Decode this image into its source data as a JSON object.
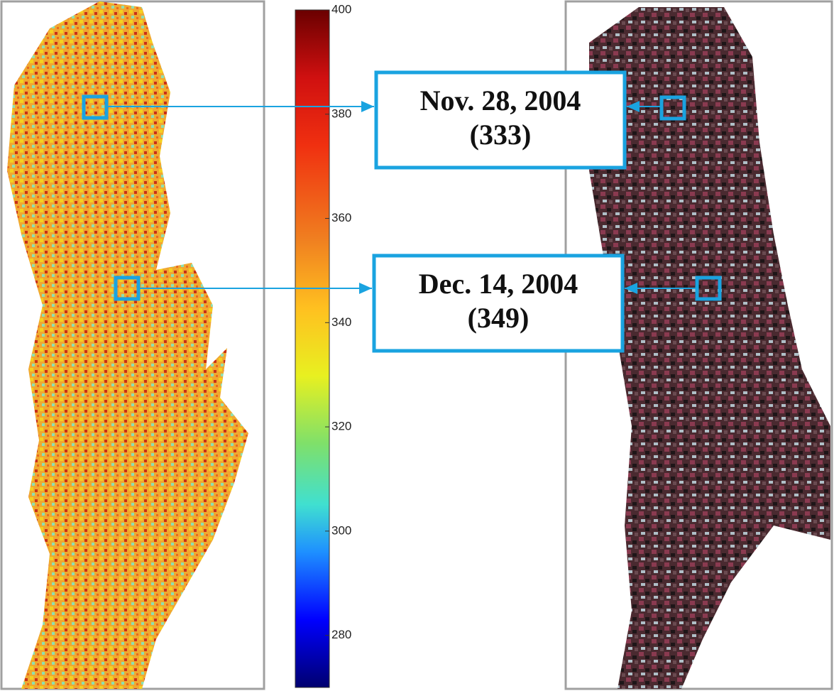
{
  "colorbar": {
    "lim": [
      270,
      400
    ],
    "ticks": [
      280,
      300,
      320,
      340,
      360,
      380,
      400
    ]
  },
  "annotations": [
    {
      "date": "Nov. 28, 2004",
      "day": "(333)"
    },
    {
      "date": "Dec. 14, 2004",
      "day": "(349)"
    }
  ]
}
